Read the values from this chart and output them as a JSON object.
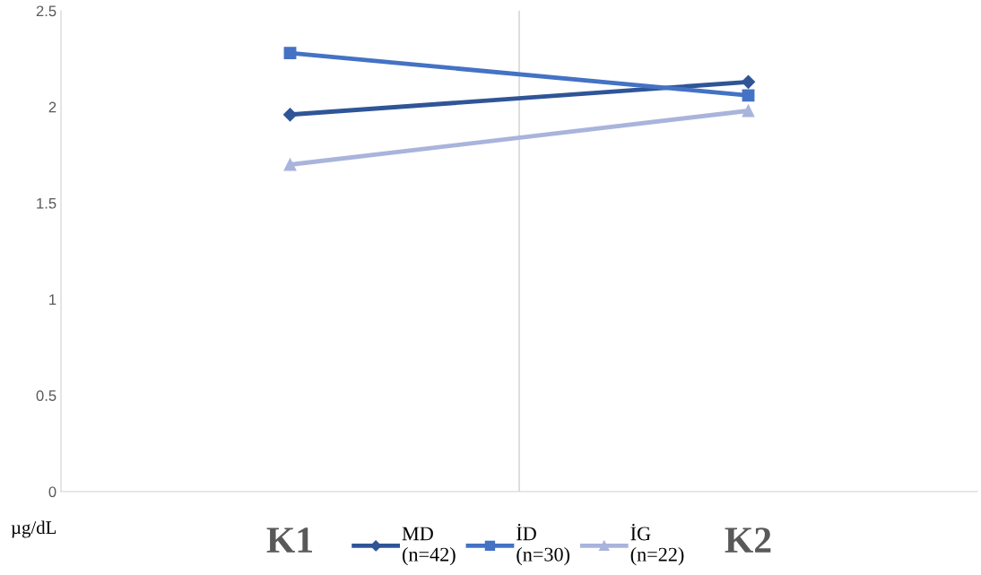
{
  "chart_data": {
    "type": "line",
    "ylabel": "µg/dL",
    "categories": [
      "K1",
      "K2"
    ],
    "series": [
      {
        "name": "MD\n(n=42)",
        "color": "#2f5597",
        "marker": "diamond",
        "values": [
          1.96,
          2.13
        ]
      },
      {
        "name": "İD\n(n=30)",
        "color": "#4472c4",
        "marker": "square",
        "values": [
          2.28,
          2.06
        ]
      },
      {
        "name": "İG\n(n=22)",
        "color": "#a9b4dc",
        "marker": "triangle",
        "values": [
          1.7,
          1.98
        ]
      }
    ],
    "ylim": [
      0,
      2.5
    ],
    "yticks": [
      0,
      0.5,
      1,
      1.5,
      2,
      2.5
    ],
    "grid": "x",
    "legend": "bottom"
  }
}
